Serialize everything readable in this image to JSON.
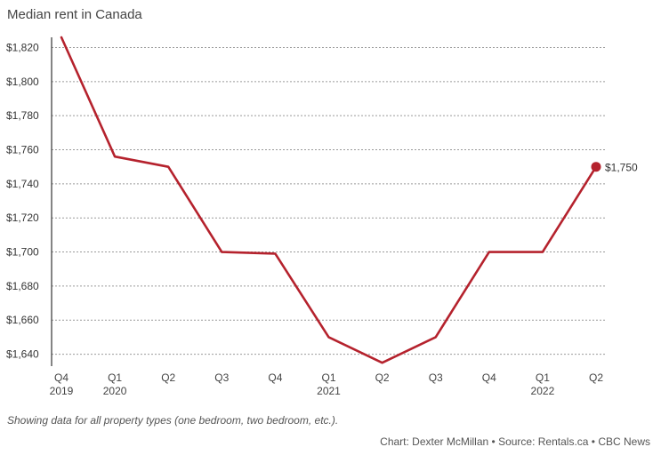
{
  "chart_data": {
    "type": "line",
    "title": "Median rent in Canada",
    "xlabel": "",
    "ylabel": "",
    "categories": [
      {
        "top": "Q4",
        "bottom": "2019"
      },
      {
        "top": "Q1",
        "bottom": "2020"
      },
      {
        "top": "Q2",
        "bottom": ""
      },
      {
        "top": "Q3",
        "bottom": ""
      },
      {
        "top": "Q4",
        "bottom": ""
      },
      {
        "top": "Q1",
        "bottom": "2021"
      },
      {
        "top": "Q2",
        "bottom": ""
      },
      {
        "top": "Q3",
        "bottom": ""
      },
      {
        "top": "Q4",
        "bottom": ""
      },
      {
        "top": "Q1",
        "bottom": "2022"
      },
      {
        "top": "Q2",
        "bottom": ""
      }
    ],
    "series": [
      {
        "name": "Median rent",
        "color": "#b5222d",
        "values": [
          1826,
          1756,
          1750,
          1700,
          1699,
          1650,
          1635,
          1650,
          1700,
          1700,
          1750
        ]
      }
    ],
    "yticks": [
      1640,
      1660,
      1680,
      1700,
      1720,
      1740,
      1760,
      1780,
      1800,
      1820
    ],
    "ytick_labels": [
      "$1,640",
      "$1,660",
      "$1,680",
      "$1,700",
      "$1,720",
      "$1,740",
      "$1,760",
      "$1,780",
      "$1,800",
      "$1,820"
    ],
    "ylim": [
      1633,
      1826
    ],
    "grid": true,
    "end_label": "$1,750"
  },
  "note": "Showing data for all property types (one bedroom, two bedroom, etc.).",
  "credit": "Chart: Dexter McMillan • Source: Rentals.ca • CBC News"
}
